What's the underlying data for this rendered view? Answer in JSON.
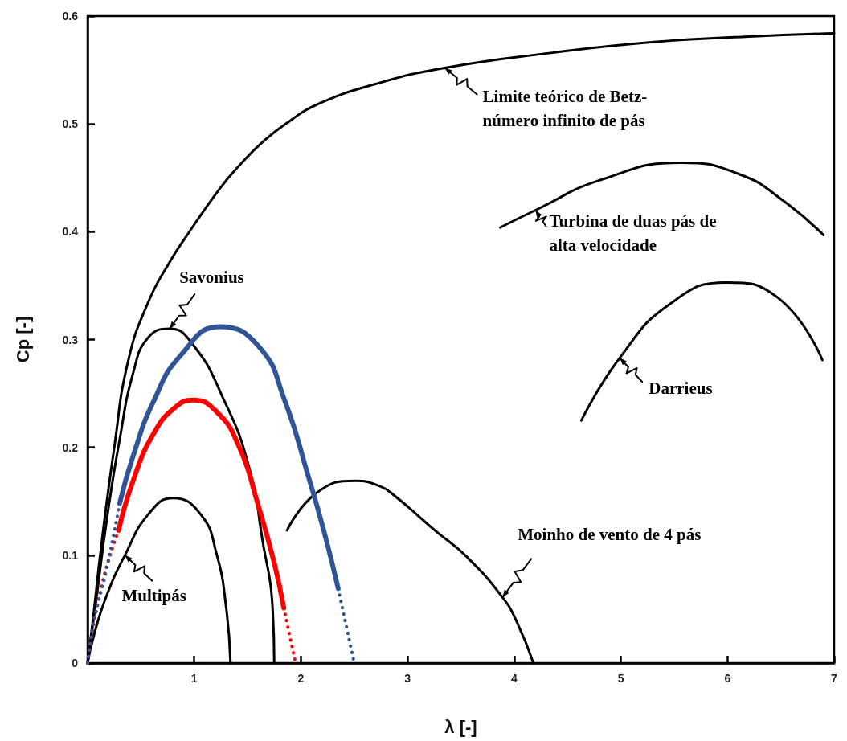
{
  "chart_data": {
    "type": "line",
    "xlabel": "λ [-]",
    "ylabel": "Cp [-]",
    "xlim": [
      0,
      7
    ],
    "xticks": [
      1,
      2,
      3,
      4,
      5,
      6,
      7
    ],
    "ylim": [
      0,
      0.6
    ],
    "yticks": [
      0,
      0.1,
      0.2,
      0.3,
      0.4,
      0.5,
      0.6
    ],
    "grid": false,
    "line_style": "solid",
    "series": [
      {
        "color": "#000000",
        "x": [
          0,
          0.05,
          0.13,
          0.25,
          0.38,
          0.57,
          0.77,
          0.92,
          1.24,
          1.41,
          1.65,
          1.9,
          2.15,
          2.7,
          3.35,
          4.36,
          5.31,
          6.2,
          7.0
        ],
        "values": [
          0,
          0.04,
          0.11,
          0.2,
          0.28,
          0.335,
          0.372,
          0.395,
          0.44,
          0.46,
          0.484,
          0.503,
          0.518,
          0.537,
          0.552,
          0.566,
          0.576,
          0.581,
          0.584
        ]
      },
      {
        "color": "#000000",
        "x": [
          0,
          0.08,
          0.18,
          0.3,
          0.43,
          0.57,
          0.77,
          0.99,
          1.26,
          1.51,
          1.65,
          1.73,
          1.75
        ],
        "values": [
          0,
          0.058,
          0.133,
          0.207,
          0.27,
          0.302,
          0.31,
          0.295,
          0.248,
          0.183,
          0.108,
          0.058,
          0
        ]
      },
      {
        "color": "#000000",
        "x": [
          0,
          0.06,
          0.18,
          0.35,
          0.57,
          0.8,
          1.06,
          1.21,
          1.3,
          1.34
        ],
        "values": [
          0,
          0.026,
          0.063,
          0.1,
          0.138,
          0.153,
          0.138,
          0.101,
          0.051,
          0
        ]
      },
      {
        "color": "#000000",
        "x": [
          1.87,
          2.15,
          2.51,
          2.74,
          2.88,
          3.27,
          3.55,
          3.89,
          4.03,
          4.18
        ],
        "values": [
          0.123,
          0.158,
          0.169,
          0.164,
          0.155,
          0.122,
          0.099,
          0.061,
          0.037,
          0
        ]
      },
      {
        "color": "#000000",
        "x": [
          3.87,
          4.2,
          4.81,
          5.57,
          6.12,
          6.52,
          6.9
        ],
        "values": [
          0.404,
          0.42,
          0.448,
          0.464,
          0.453,
          0.429,
          0.397
        ]
      },
      {
        "color": "#000000",
        "x": [
          4.63,
          4.99,
          5.46,
          5.99,
          6.47,
          6.89
        ],
        "values": [
          0.225,
          0.283,
          0.333,
          0.353,
          0.339,
          0.281
        ]
      },
      {
        "color": "#ff0000",
        "x": [
          0.29,
          0.43,
          0.62,
          0.82,
          0.99,
          1.21,
          1.41,
          1.61,
          1.75,
          1.84
        ],
        "values": [
          0.123,
          0.17,
          0.213,
          0.237,
          0.244,
          0.233,
          0.203,
          0.143,
          0.093,
          0.051
        ]
      },
      {
        "color": "#ff0000",
        "line_style": "dotted",
        "x": [
          0,
          0.13,
          0.29
        ],
        "values": [
          0,
          0.071,
          0.123
        ]
      },
      {
        "color": "#ff0000",
        "line_style": "dotted",
        "x": [
          1.84,
          1.95
        ],
        "values": [
          0.051,
          0
        ]
      },
      {
        "color": "#2f5597",
        "x": [
          0.3,
          0.43,
          0.62,
          0.87,
          1.24,
          1.61,
          1.85,
          2.07,
          2.22,
          2.35
        ],
        "values": [
          0.148,
          0.193,
          0.243,
          0.285,
          0.312,
          0.293,
          0.243,
          0.173,
          0.121,
          0.069
        ]
      },
      {
        "color": "#2f5597",
        "line_style": "dotted",
        "x": [
          0,
          0.06,
          0.18,
          0.3
        ],
        "values": [
          0,
          0.039,
          0.088,
          0.148
        ]
      },
      {
        "color": "#2f5597",
        "line_style": "dotted",
        "x": [
          2.35,
          2.5
        ],
        "values": [
          0.069,
          0
        ]
      }
    ],
    "annotations": [
      {
        "text": "Limite teórico de Betz-\nnúmero infinito de pás",
        "x": 3.35,
        "y": 0.552
      },
      {
        "text": "Turbina de duas pás de\nalta velocidade",
        "x": 4.2,
        "y": 0.42
      },
      {
        "text": "Darrieus",
        "x": 4.99,
        "y": 0.283
      },
      {
        "text": "Moinho de vento de 4 pás",
        "x": 3.89,
        "y": 0.061
      },
      {
        "text": "Savonius",
        "x": 0.77,
        "y": 0.31
      },
      {
        "text": "Multipás",
        "x": 0.35,
        "y": 0.1
      }
    ]
  }
}
